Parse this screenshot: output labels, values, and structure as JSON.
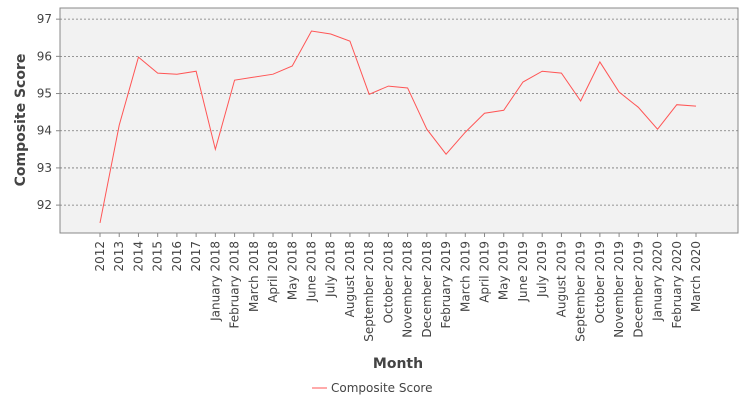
{
  "chart_data": {
    "type": "line",
    "x_label": "Month",
    "y_label": "Composite Score",
    "categories": [
      "2012",
      "2013",
      "2014",
      "2015",
      "2016",
      "2017",
      "January 2018",
      "February 2018",
      "March 2018",
      "April 2018",
      "May 2018",
      "June 2018",
      "July 2018",
      "August 2018",
      "September 2018",
      "October 2018",
      "November 2018",
      "December 2018",
      "February 2019",
      "March 2019",
      "April 2019",
      "May 2019",
      "June 2019",
      "July 2019",
      "August 2019",
      "September 2019",
      "October 2019",
      "November 2019",
      "December 2019",
      "January 2020",
      "February 2020",
      "March 2020"
    ],
    "series": [
      {
        "name": "Composite Score",
        "color": "#ff5555",
        "values": [
          91.52,
          94.15,
          95.98,
          95.55,
          95.52,
          95.6,
          93.5,
          95.36,
          95.44,
          95.52,
          95.74,
          96.68,
          96.6,
          96.41,
          94.98,
          95.2,
          95.15,
          94.04,
          93.37,
          93.96,
          94.47,
          94.55,
          95.31,
          95.6,
          95.55,
          94.8,
          95.85,
          95.04,
          94.63,
          94.04,
          94.7,
          94.66
        ]
      }
    ],
    "ylim": [
      91.25,
      97.3
    ],
    "yticks": [
      92,
      93,
      94,
      95,
      96,
      97
    ],
    "grid": true,
    "legend": "bottom"
  }
}
